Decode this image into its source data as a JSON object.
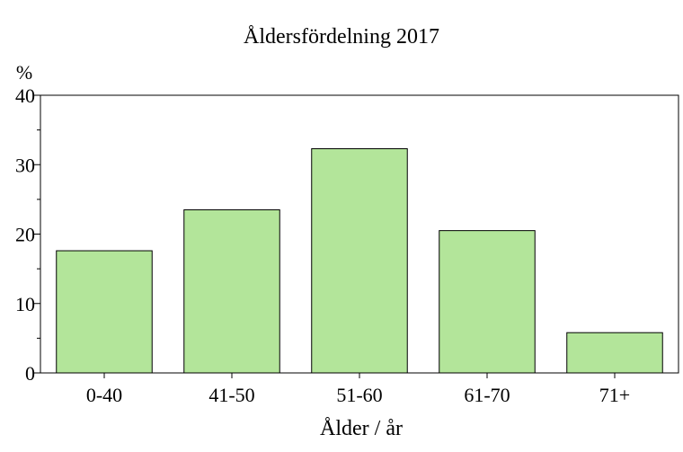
{
  "chart_data": {
    "type": "bar",
    "title": "Åldersfördelning 2017",
    "xlabel": "Ålder / år",
    "ylabel": "%",
    "categories": [
      "0-40",
      "41-50",
      "51-60",
      "61-70",
      "71+"
    ],
    "values": [
      17.6,
      23.5,
      32.3,
      20.5,
      5.8
    ],
    "ylim": [
      0,
      40
    ],
    "yticks": [
      0,
      10,
      20,
      30,
      40
    ],
    "grid": false,
    "legend": "none",
    "colors": {
      "bar_fill": "#b3e59a",
      "bar_stroke": "#000000",
      "axis": "#000000"
    }
  }
}
